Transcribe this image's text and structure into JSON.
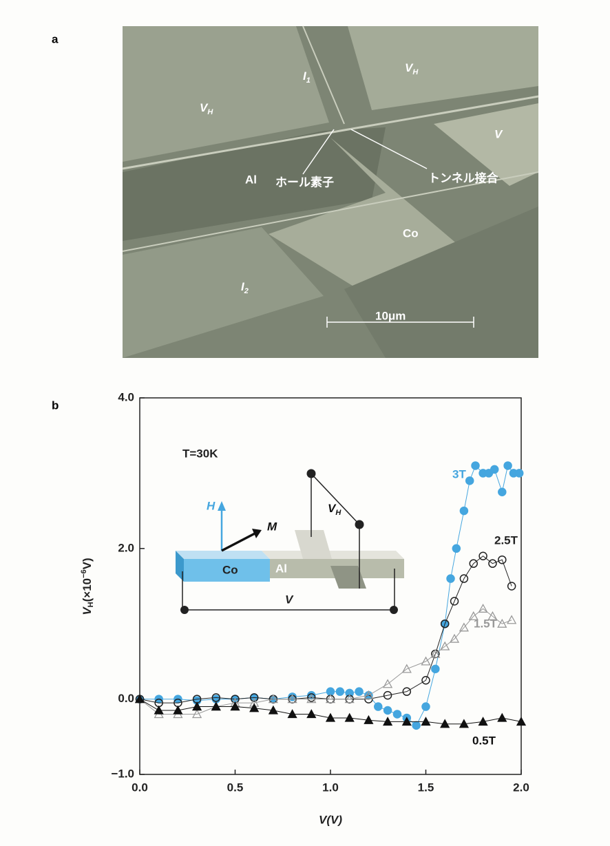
{
  "panel_a": {
    "label": "a",
    "labels": {
      "i1": {
        "main": "I",
        "sub": "1"
      },
      "vh_left": {
        "main": "V",
        "sub": "H"
      },
      "vh_right": {
        "main": "V",
        "sub": "H"
      },
      "v": "V",
      "al": "Al",
      "hall": "ホール素子",
      "tunnel": "トンネル接合",
      "co": "Co",
      "i2": {
        "main": "I",
        "sub": "2"
      },
      "scale": "10μm"
    }
  },
  "chart_data": {
    "type": "scatter",
    "panel_label": "b",
    "x_label": "V(V)",
    "y_label": {
      "main": "V",
      "sub": "H",
      "rest": "(×10",
      "exp": "−6",
      "end": "V)"
    },
    "xlim": [
      0,
      2
    ],
    "xticks": [
      {
        "value": 0,
        "label": "0.0"
      },
      0.5,
      {
        "value": 1,
        "label": "1.0"
      },
      1.5,
      {
        "value": 2,
        "label": "2.0"
      }
    ],
    "ylim": [
      -1,
      4
    ],
    "yticks": [
      {
        "value": -1,
        "label": "−1.0"
      },
      {
        "value": 0,
        "label": "0.0"
      },
      {
        "value": 2,
        "label": "2.0"
      },
      {
        "value": 4,
        "label": "4.0"
      }
    ],
    "annotation": "T=30K",
    "inset": {
      "h": "H",
      "m": "M",
      "vh": {
        "main": "V",
        "sub": "H"
      },
      "co": "Co",
      "al": "Al",
      "v": "V"
    },
    "series": [
      {
        "name": "3T",
        "color": "#45a6df",
        "marker": "circle",
        "x": [
          0,
          0.1,
          0.2,
          0.3,
          0.4,
          0.5,
          0.6,
          0.7,
          0.8,
          0.9,
          1.0,
          1.05,
          1.1,
          1.15,
          1.2,
          1.25,
          1.3,
          1.35,
          1.4,
          1.45,
          1.5,
          1.55,
          1.6,
          1.63,
          1.66,
          1.7,
          1.73,
          1.76,
          1.8,
          1.83,
          1.86,
          1.9,
          1.93,
          1.96,
          1.99
        ],
        "values": [
          0,
          0,
          0,
          -0.02,
          0,
          0,
          0.02,
          0,
          0.03,
          0.05,
          0.1,
          0.1,
          0.08,
          0.1,
          0.05,
          -0.1,
          -0.15,
          -0.2,
          -0.25,
          -0.35,
          -0.1,
          0.4,
          1.0,
          1.6,
          2.0,
          2.5,
          2.9,
          3.1,
          3.0,
          3.0,
          3.05,
          2.75,
          3.1,
          3.0,
          3.0
        ]
      },
      {
        "name": "2.5T",
        "color": "#222222",
        "marker": "circle-open",
        "x": [
          0,
          0.1,
          0.2,
          0.3,
          0.4,
          0.5,
          0.6,
          0.7,
          0.8,
          0.9,
          1.0,
          1.1,
          1.2,
          1.3,
          1.4,
          1.5,
          1.55,
          1.6,
          1.65,
          1.7,
          1.75,
          1.8,
          1.85,
          1.9,
          1.95
        ],
        "values": [
          0,
          -0.05,
          -0.05,
          0,
          0.02,
          0,
          0.02,
          0,
          0,
          0.02,
          0,
          0,
          0,
          0.05,
          0.1,
          0.25,
          0.6,
          1.0,
          1.3,
          1.6,
          1.8,
          1.9,
          1.8,
          1.85,
          1.5
        ]
      },
      {
        "name": "1.5T",
        "color": "#999999",
        "marker": "triangle-open",
        "x": [
          0,
          0.1,
          0.2,
          0.3,
          0.4,
          0.5,
          0.6,
          0.7,
          0.8,
          0.9,
          1.0,
          1.1,
          1.2,
          1.3,
          1.4,
          1.5,
          1.55,
          1.6,
          1.65,
          1.7,
          1.75,
          1.8,
          1.85,
          1.9,
          1.95
        ],
        "values": [
          0,
          -0.2,
          -0.2,
          -0.2,
          -0.1,
          -0.05,
          -0.05,
          0,
          0,
          0,
          0,
          0,
          0.05,
          0.2,
          0.4,
          0.5,
          0.6,
          0.7,
          0.8,
          0.95,
          1.1,
          1.2,
          1.1,
          1.0,
          1.05
        ]
      },
      {
        "name": "0.5T",
        "color": "#111111",
        "marker": "triangle",
        "x": [
          0,
          0.1,
          0.2,
          0.3,
          0.4,
          0.5,
          0.6,
          0.7,
          0.8,
          0.9,
          1.0,
          1.1,
          1.2,
          1.3,
          1.4,
          1.5,
          1.6,
          1.7,
          1.8,
          1.9,
          2.0
        ],
        "values": [
          0,
          -0.15,
          -0.15,
          -0.1,
          -0.1,
          -0.1,
          -0.12,
          -0.15,
          -0.2,
          -0.2,
          -0.25,
          -0.25,
          -0.28,
          -0.3,
          -0.3,
          -0.3,
          -0.33,
          -0.33,
          -0.3,
          -0.25,
          -0.3
        ]
      }
    ]
  }
}
